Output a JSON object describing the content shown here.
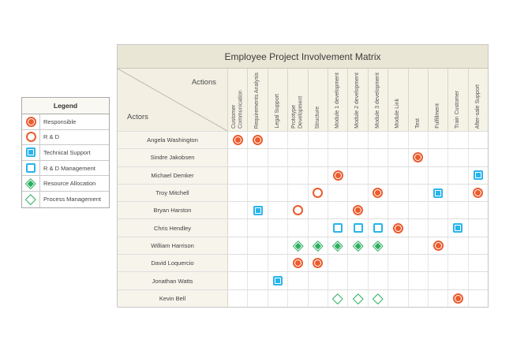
{
  "colors": {
    "orange": "#EB5B2D",
    "blue": "#29B4EC",
    "green": "#2BAE5F",
    "title_bar_bg": "#EAE6D5",
    "header_bg": "#F5F2E6",
    "name_cell_bg": "#F6F4EB"
  },
  "legend": {
    "title": "Legend",
    "items": [
      {
        "symbol": "responsible",
        "label": "Responsible"
      },
      {
        "symbol": "rd",
        "label": "R & D"
      },
      {
        "symbol": "tech-support",
        "label": "Technical Support"
      },
      {
        "symbol": "rd-mgmt",
        "label": "R & D Management"
      },
      {
        "symbol": "resource-alloc",
        "label": "Resource Allocation"
      },
      {
        "symbol": "process-mgmt",
        "label": "Process Management"
      }
    ]
  },
  "matrix": {
    "title": "Employee Project Involvement Matrix",
    "corner": {
      "top_label": "Actions",
      "bottom_label": "Actors"
    },
    "actions": [
      "Customer Communication",
      "Requirements Analysis",
      "Legal Support",
      "Prototype Development",
      "Structure",
      "Module 1 development",
      "Module 2 development",
      "Module 3 development",
      "Module Link",
      "Test",
      "Fulfillment",
      "Train Customer",
      "After-sale Support"
    ],
    "actors": [
      "Angela Washington",
      "Sindre Jakobsen",
      "Michael Demker",
      "Troy Mitchell",
      "Bryan Harston",
      "Chris Hendley",
      "William Harrison",
      "David Loquercio",
      "Jonathan Watts",
      "Kevin Bell"
    ],
    "marks": [
      {
        "row": 0,
        "col": 0,
        "symbol": "responsible"
      },
      {
        "row": 0,
        "col": 1,
        "symbol": "responsible"
      },
      {
        "row": 1,
        "col": 9,
        "symbol": "responsible"
      },
      {
        "row": 2,
        "col": 5,
        "symbol": "responsible"
      },
      {
        "row": 2,
        "col": 12,
        "symbol": "tech-support"
      },
      {
        "row": 3,
        "col": 4,
        "symbol": "rd"
      },
      {
        "row": 3,
        "col": 7,
        "symbol": "responsible"
      },
      {
        "row": 3,
        "col": 10,
        "symbol": "tech-support"
      },
      {
        "row": 3,
        "col": 12,
        "symbol": "responsible"
      },
      {
        "row": 4,
        "col": 1,
        "symbol": "tech-support"
      },
      {
        "row": 4,
        "col": 3,
        "symbol": "rd"
      },
      {
        "row": 4,
        "col": 6,
        "symbol": "responsible"
      },
      {
        "row": 5,
        "col": 5,
        "symbol": "rd-mgmt"
      },
      {
        "row": 5,
        "col": 6,
        "symbol": "rd-mgmt"
      },
      {
        "row": 5,
        "col": 7,
        "symbol": "rd-mgmt"
      },
      {
        "row": 5,
        "col": 8,
        "symbol": "responsible"
      },
      {
        "row": 5,
        "col": 11,
        "symbol": "tech-support"
      },
      {
        "row": 6,
        "col": 3,
        "symbol": "resource-alloc"
      },
      {
        "row": 6,
        "col": 4,
        "symbol": "resource-alloc"
      },
      {
        "row": 6,
        "col": 5,
        "symbol": "resource-alloc"
      },
      {
        "row": 6,
        "col": 6,
        "symbol": "resource-alloc"
      },
      {
        "row": 6,
        "col": 7,
        "symbol": "resource-alloc"
      },
      {
        "row": 6,
        "col": 10,
        "symbol": "responsible"
      },
      {
        "row": 7,
        "col": 3,
        "symbol": "responsible"
      },
      {
        "row": 7,
        "col": 4,
        "symbol": "responsible"
      },
      {
        "row": 8,
        "col": 2,
        "symbol": "tech-support"
      },
      {
        "row": 9,
        "col": 5,
        "symbol": "process-mgmt"
      },
      {
        "row": 9,
        "col": 6,
        "symbol": "process-mgmt"
      },
      {
        "row": 9,
        "col": 7,
        "symbol": "process-mgmt"
      },
      {
        "row": 9,
        "col": 11,
        "symbol": "responsible"
      }
    ]
  }
}
